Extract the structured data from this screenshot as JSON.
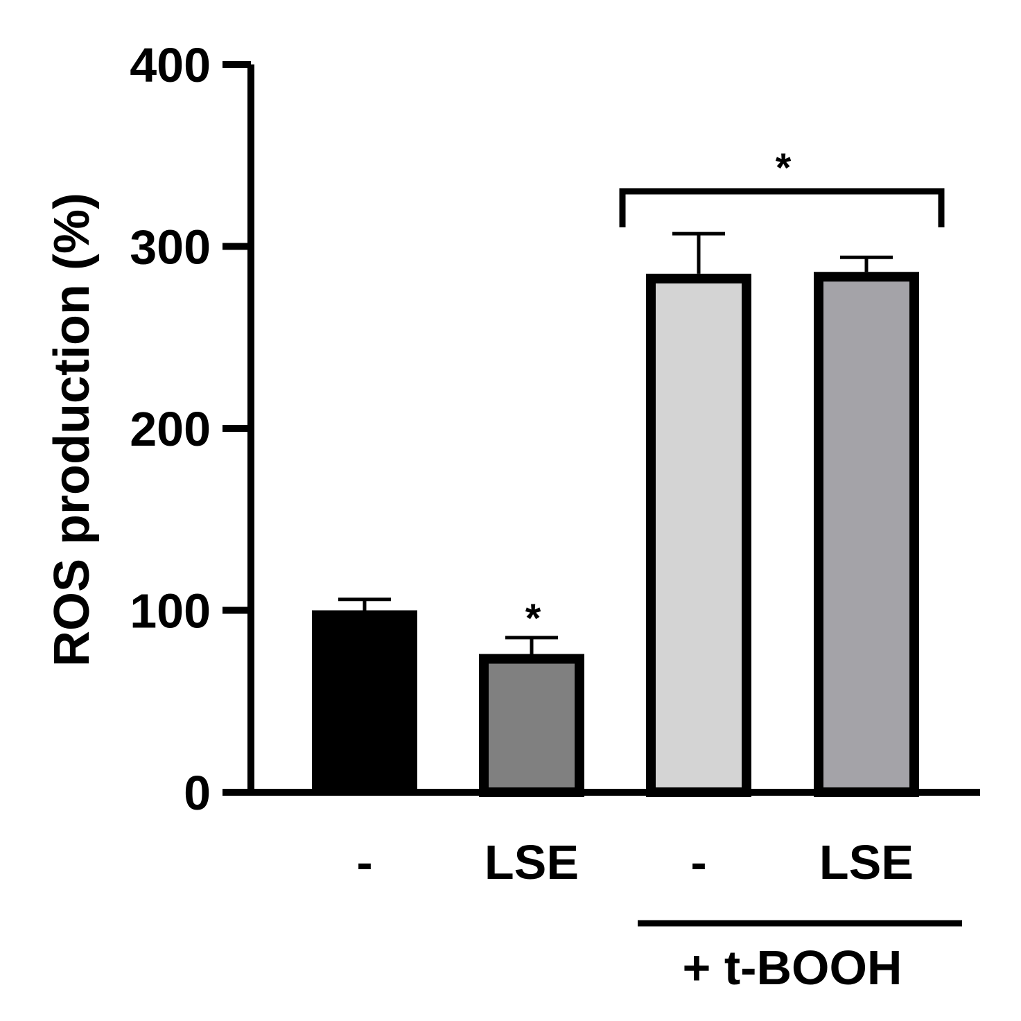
{
  "chart_data": {
    "type": "bar",
    "title": "",
    "xlabel": "",
    "ylabel": "ROS production (%)",
    "ylim": [
      0,
      400
    ],
    "yticks": [
      "0",
      "100",
      "200",
      "300",
      "400"
    ],
    "grid": false,
    "categories": [
      "-",
      "LSE",
      "-",
      "LSE"
    ],
    "values": [
      100,
      76,
      285,
      286
    ],
    "errors": [
      6,
      9,
      22,
      8
    ],
    "bar_colors": [
      "#000000",
      "#808080",
      "#d4d4d4",
      "#a4a3a8"
    ],
    "annotations": {
      "bar_star": "*",
      "bracket_star": "*",
      "group_label": "+ t-BOOH"
    }
  }
}
